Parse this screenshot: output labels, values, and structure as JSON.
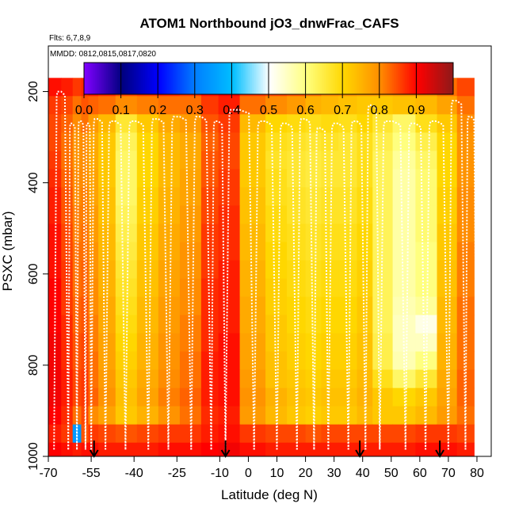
{
  "chart_data": {
    "type": "heatmap",
    "title": "ATOM1 Northbound jO3_dnwFrac_CAFS",
    "flights_label": "Flts: 6,7,8,9",
    "mmdd_label": "MMDD: 0812,0815,0817,0820",
    "xlabel": "Latitude (deg N)",
    "ylabel": "PSXC (mbar)",
    "xlim": [
      -70,
      85
    ],
    "ylim": [
      1000,
      100
    ],
    "x_ticks": [
      -70,
      -55,
      -40,
      -25,
      -10,
      0,
      10,
      20,
      30,
      40,
      50,
      60,
      70,
      80
    ],
    "x_tick_labels": [
      "-70",
      "-55",
      "-40",
      "-25",
      "-10",
      "0",
      "10",
      "20",
      "30",
      "40",
      "50",
      "60",
      "70",
      "80"
    ],
    "y_ticks": [
      200,
      400,
      600,
      800,
      1000
    ],
    "y_tick_labels": [
      "200",
      "400",
      "600",
      "800",
      "1000"
    ],
    "colorbar": {
      "range": [
        0.0,
        1.0
      ],
      "tick_values": [
        0.0,
        0.1,
        0.2,
        0.3,
        0.4,
        0.5,
        0.6,
        0.7,
        0.8,
        0.9
      ],
      "tick_labels": [
        "0.0",
        "0.1",
        "0.2",
        "0.3",
        "0.4",
        "0.5",
        "0.6",
        "0.7",
        "0.8",
        "0.9"
      ],
      "colors": [
        "#7f00ff",
        "#00007f",
        "#0000ff",
        "#007fff",
        "#00bfff",
        "#ffffff",
        "#ffff7f",
        "#ffd700",
        "#ff8c00",
        "#ff0000",
        "#8b1a1a"
      ]
    },
    "profile_latitudes": [
      -68,
      -63,
      -60,
      -57,
      -55,
      -50,
      -43,
      -35,
      -28,
      -20,
      -13,
      -8,
      2,
      10,
      17,
      23,
      28,
      35,
      41,
      46,
      55,
      62,
      70,
      76
    ],
    "profile_peak_pressure": [
      200,
      270,
      265,
      270,
      260,
      265,
      265,
      260,
      255,
      255,
      265,
      240,
      265,
      270,
      260,
      280,
      270,
      265,
      230,
      265,
      270,
      265,
      220,
      255
    ],
    "grid_pressure_levels": [
      190,
      230,
      270,
      310,
      350,
      390,
      430,
      470,
      510,
      550,
      590,
      630,
      670,
      710,
      750,
      790,
      830,
      870,
      910,
      950,
      990
    ],
    "values": [
      [
        0.89,
        0.88,
        0.86,
        0.87,
        0.88,
        0.87,
        0.85,
        0.86,
        0.87,
        0.86,
        0.89,
        0.91,
        0.86,
        0.85,
        0.84,
        0.82,
        0.8,
        0.79,
        0.78,
        0.78,
        0.79,
        0.8,
        0.82,
        0.85
      ],
      [
        0.86,
        0.85,
        0.82,
        0.84,
        0.83,
        0.82,
        0.8,
        0.81,
        0.82,
        0.82,
        0.86,
        0.88,
        0.82,
        0.8,
        0.78,
        0.75,
        0.74,
        0.73,
        0.72,
        0.72,
        0.73,
        0.74,
        0.77,
        0.82
      ],
      [
        0.85,
        0.83,
        0.8,
        0.82,
        0.78,
        0.74,
        0.66,
        0.72,
        0.76,
        0.78,
        0.84,
        0.86,
        0.74,
        0.7,
        0.69,
        0.68,
        0.69,
        0.68,
        0.7,
        0.66,
        0.62,
        0.68,
        0.72,
        0.8
      ],
      [
        0.85,
        0.82,
        0.79,
        0.8,
        0.76,
        0.72,
        0.63,
        0.7,
        0.74,
        0.76,
        0.83,
        0.85,
        0.72,
        0.68,
        0.67,
        0.66,
        0.67,
        0.66,
        0.68,
        0.64,
        0.6,
        0.64,
        0.7,
        0.79
      ],
      [
        0.86,
        0.82,
        0.79,
        0.8,
        0.76,
        0.72,
        0.62,
        0.7,
        0.74,
        0.76,
        0.84,
        0.85,
        0.72,
        0.67,
        0.66,
        0.65,
        0.66,
        0.66,
        0.68,
        0.63,
        0.58,
        0.62,
        0.7,
        0.79
      ],
      [
        0.87,
        0.83,
        0.8,
        0.8,
        0.77,
        0.72,
        0.62,
        0.7,
        0.74,
        0.77,
        0.84,
        0.86,
        0.72,
        0.68,
        0.66,
        0.65,
        0.66,
        0.66,
        0.68,
        0.63,
        0.57,
        0.61,
        0.7,
        0.79
      ],
      [
        0.88,
        0.84,
        0.8,
        0.81,
        0.77,
        0.73,
        0.62,
        0.71,
        0.75,
        0.77,
        0.85,
        0.86,
        0.73,
        0.68,
        0.67,
        0.66,
        0.67,
        0.67,
        0.69,
        0.63,
        0.57,
        0.61,
        0.71,
        0.8
      ],
      [
        0.88,
        0.84,
        0.81,
        0.81,
        0.78,
        0.73,
        0.63,
        0.71,
        0.75,
        0.78,
        0.85,
        0.87,
        0.73,
        0.69,
        0.67,
        0.66,
        0.67,
        0.67,
        0.69,
        0.63,
        0.57,
        0.61,
        0.71,
        0.8
      ],
      [
        0.89,
        0.85,
        0.81,
        0.82,
        0.78,
        0.74,
        0.64,
        0.72,
        0.76,
        0.78,
        0.86,
        0.87,
        0.74,
        0.69,
        0.68,
        0.67,
        0.68,
        0.68,
        0.7,
        0.63,
        0.57,
        0.61,
        0.72,
        0.8
      ],
      [
        0.89,
        0.85,
        0.82,
        0.82,
        0.79,
        0.74,
        0.65,
        0.72,
        0.76,
        0.79,
        0.86,
        0.87,
        0.74,
        0.7,
        0.68,
        0.67,
        0.68,
        0.68,
        0.7,
        0.63,
        0.57,
        0.6,
        0.72,
        0.81
      ],
      [
        0.89,
        0.86,
        0.82,
        0.83,
        0.79,
        0.75,
        0.66,
        0.73,
        0.77,
        0.79,
        0.86,
        0.88,
        0.75,
        0.7,
        0.69,
        0.68,
        0.69,
        0.69,
        0.71,
        0.63,
        0.57,
        0.6,
        0.73,
        0.81
      ],
      [
        0.9,
        0.86,
        0.82,
        0.83,
        0.8,
        0.75,
        0.67,
        0.73,
        0.77,
        0.8,
        0.87,
        0.88,
        0.75,
        0.71,
        0.69,
        0.68,
        0.69,
        0.69,
        0.71,
        0.63,
        0.57,
        0.6,
        0.73,
        0.81
      ],
      [
        0.9,
        0.86,
        0.83,
        0.84,
        0.8,
        0.76,
        0.68,
        0.74,
        0.78,
        0.8,
        0.87,
        0.88,
        0.76,
        0.71,
        0.7,
        0.69,
        0.7,
        0.7,
        0.72,
        0.63,
        0.56,
        0.58,
        0.74,
        0.82
      ],
      [
        0.9,
        0.87,
        0.83,
        0.84,
        0.81,
        0.76,
        0.69,
        0.74,
        0.78,
        0.81,
        0.87,
        0.88,
        0.76,
        0.72,
        0.7,
        0.69,
        0.7,
        0.7,
        0.72,
        0.63,
        0.55,
        0.52,
        0.74,
        0.82
      ],
      [
        0.91,
        0.87,
        0.84,
        0.85,
        0.81,
        0.77,
        0.7,
        0.75,
        0.79,
        0.81,
        0.87,
        0.89,
        0.77,
        0.72,
        0.71,
        0.7,
        0.71,
        0.71,
        0.73,
        0.64,
        0.55,
        0.55,
        0.75,
        0.82
      ],
      [
        0.91,
        0.87,
        0.84,
        0.85,
        0.82,
        0.77,
        0.71,
        0.75,
        0.79,
        0.82,
        0.88,
        0.89,
        0.77,
        0.73,
        0.71,
        0.7,
        0.71,
        0.71,
        0.73,
        0.64,
        0.56,
        0.6,
        0.75,
        0.82
      ],
      [
        0.91,
        0.88,
        0.85,
        0.86,
        0.82,
        0.78,
        0.72,
        0.76,
        0.8,
        0.82,
        0.88,
        0.89,
        0.78,
        0.73,
        0.72,
        0.71,
        0.72,
        0.72,
        0.74,
        0.68,
        0.62,
        0.66,
        0.76,
        0.83
      ],
      [
        0.91,
        0.88,
        0.85,
        0.86,
        0.83,
        0.79,
        0.73,
        0.77,
        0.81,
        0.83,
        0.88,
        0.89,
        0.79,
        0.75,
        0.73,
        0.72,
        0.73,
        0.73,
        0.75,
        0.72,
        0.7,
        0.72,
        0.77,
        0.83
      ],
      [
        0.9,
        0.87,
        0.82,
        0.85,
        0.8,
        0.77,
        0.72,
        0.75,
        0.79,
        0.82,
        0.87,
        0.88,
        0.78,
        0.74,
        0.72,
        0.71,
        0.72,
        0.72,
        0.74,
        0.72,
        0.72,
        0.74,
        0.78,
        0.82
      ],
      [
        0.88,
        0.86,
        0.34,
        0.84,
        0.86,
        0.85,
        0.84,
        0.85,
        0.86,
        0.86,
        0.88,
        0.89,
        0.86,
        0.85,
        0.85,
        0.84,
        0.85,
        0.85,
        0.85,
        0.85,
        0.85,
        0.86,
        0.86,
        0.85
      ],
      [
        0.9,
        0.89,
        0.88,
        0.89,
        0.89,
        0.88,
        0.88,
        0.88,
        0.89,
        0.89,
        0.9,
        0.91,
        0.89,
        0.88,
        0.88,
        0.88,
        0.88,
        0.88,
        0.88,
        0.88,
        0.88,
        0.89,
        0.89,
        0.88
      ]
    ]
  }
}
